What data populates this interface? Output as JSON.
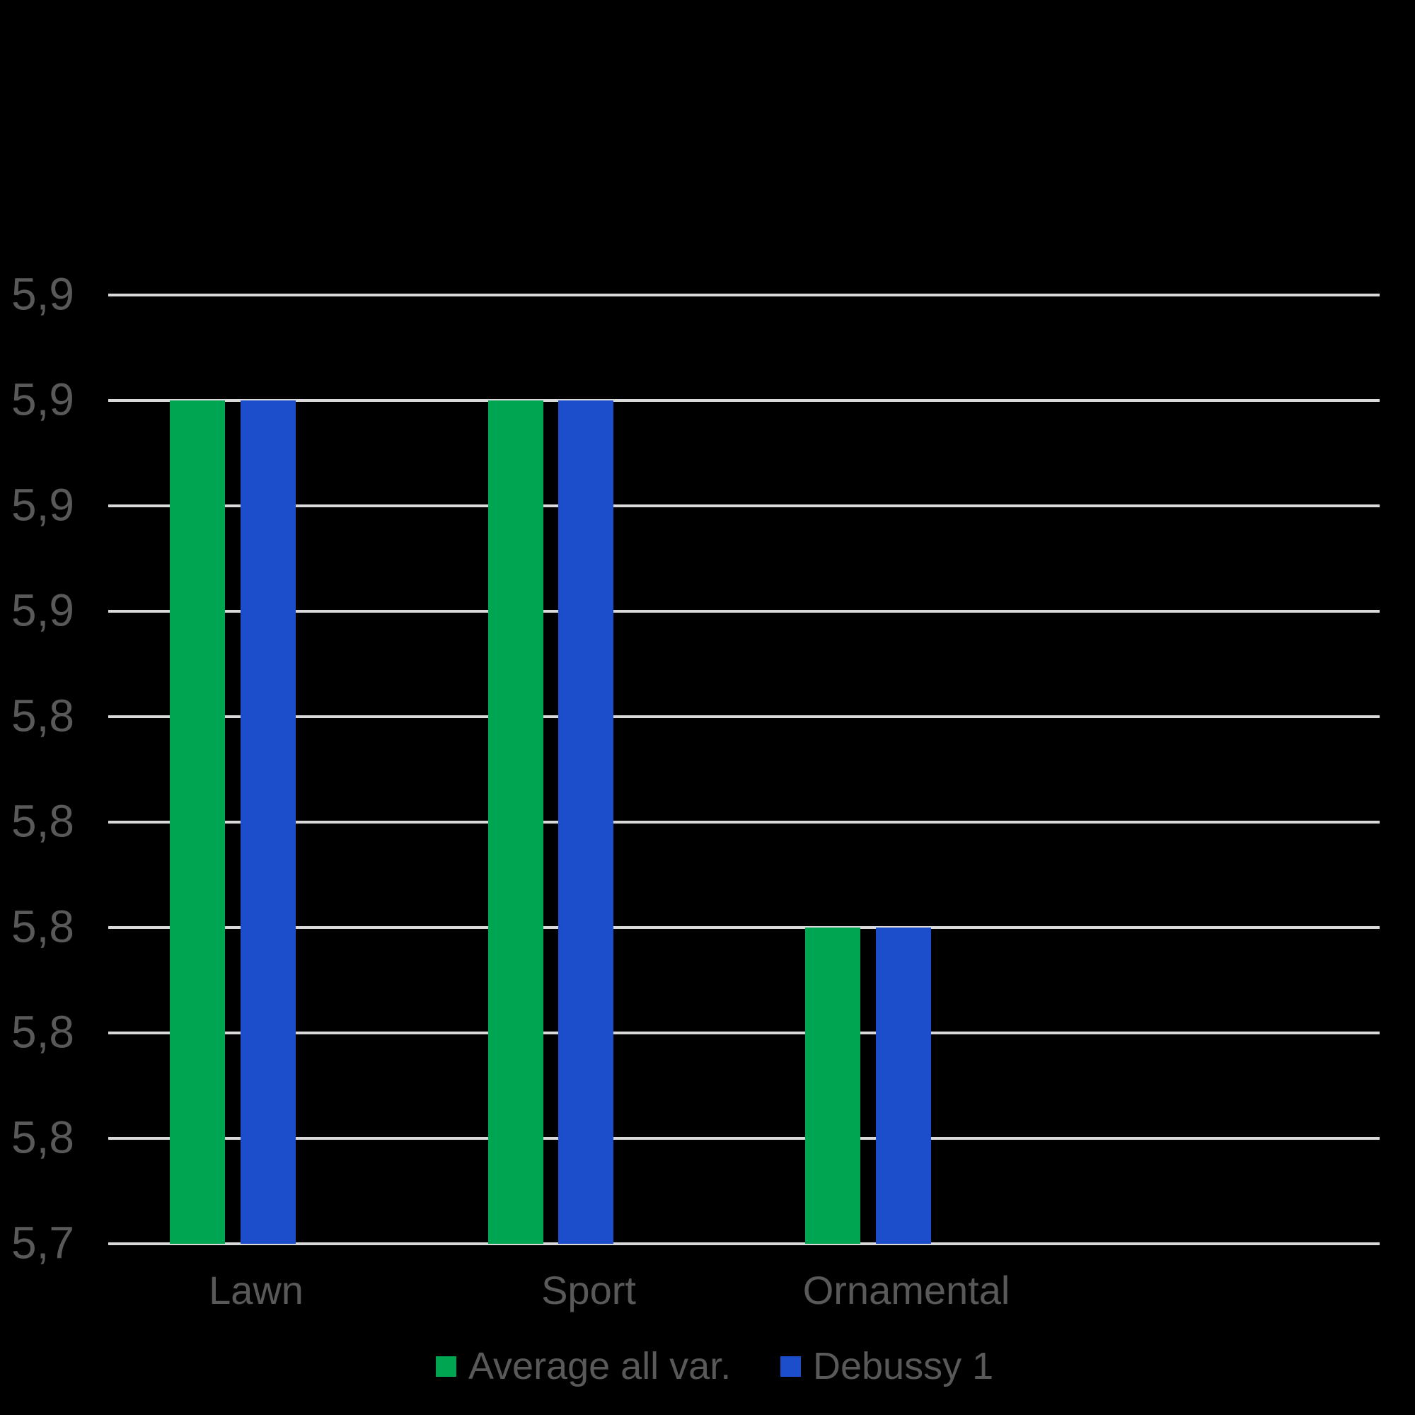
{
  "colors": {
    "background": "#000000",
    "text": "#595959",
    "gridline": "#D9D9D9",
    "series_green": "#00A551",
    "series_blue": "#1C4ECC"
  },
  "chart_data": {
    "type": "bar",
    "title": "",
    "categories": [
      "Lawn",
      "Sport",
      "Ornamental"
    ],
    "series": [
      {
        "name": "Average all var.",
        "color": "#00A551",
        "values": [
          5.9,
          5.9,
          5.8
        ]
      },
      {
        "name": "Debussy 1",
        "color": "#1C4ECC",
        "values": [
          5.9,
          5.9,
          5.8
        ]
      }
    ],
    "y_axis": {
      "min": 5.74,
      "max": 5.92,
      "major_step": 0.02,
      "decimal_separator": ",",
      "tick_labels_top_to_bottom": [
        "5,9",
        "5,9",
        "5,9",
        "5,9",
        "5,8",
        "5,8",
        "5,8",
        "5,8",
        "5,8",
        "5,7"
      ],
      "tick_values_top_to_bottom": [
        5.92,
        5.9,
        5.88,
        5.86,
        5.84,
        5.82,
        5.8,
        5.78,
        5.76,
        5.74
      ]
    },
    "grid": true,
    "legend_position": "bottom"
  }
}
